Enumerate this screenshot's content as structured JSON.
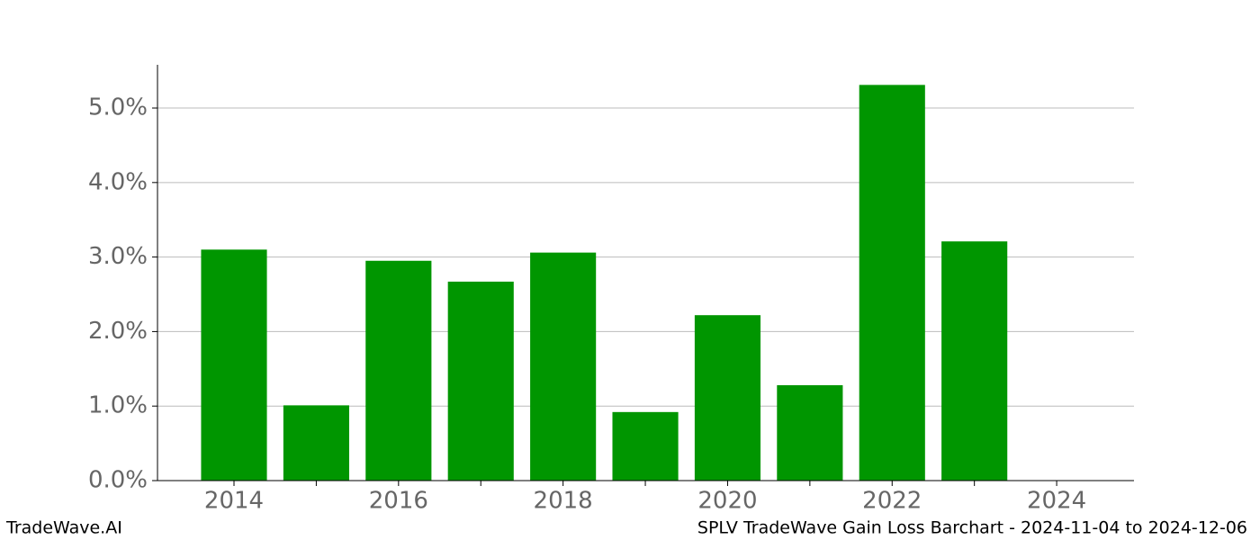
{
  "chart_data": {
    "type": "bar",
    "x": [
      2014,
      2015,
      2016,
      2017,
      2018,
      2019,
      2020,
      2021,
      2022,
      2023
    ],
    "values": [
      3.1,
      1.01,
      2.95,
      2.67,
      3.06,
      0.92,
      2.22,
      1.28,
      5.31,
      3.21
    ],
    "color": "#009600",
    "xlim": [
      2013.07,
      2024.94
    ],
    "xticks": [
      2014,
      2016,
      2018,
      2020,
      2022,
      2024
    ],
    "x_minor_ticks": [
      2015,
      2017,
      2019,
      2021,
      2023
    ],
    "ylim": [
      0,
      5.58
    ],
    "yticks": [
      {
        "value": 0,
        "label": "0.0%"
      },
      {
        "value": 1,
        "label": "1.0%"
      },
      {
        "value": 2,
        "label": "2.0%"
      },
      {
        "value": 3,
        "label": "3.0%"
      },
      {
        "value": 4,
        "label": "4.0%"
      },
      {
        "value": 5,
        "label": "5.0%"
      }
    ],
    "grid": true
  },
  "footer": {
    "left": "TradeWave.AI",
    "right": "SPLV TradeWave Gain Loss Barchart - 2024-11-04 to 2024-12-06"
  }
}
